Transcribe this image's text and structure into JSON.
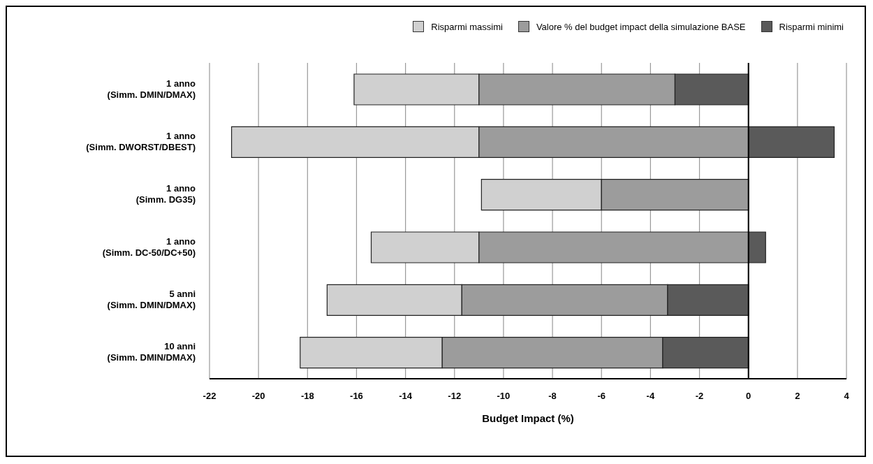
{
  "chart_data": {
    "type": "bar",
    "orientation": "horizontal",
    "xlabel": "Budget Impact (%)",
    "categories": [
      "1 anno\n(Simm. DMIN/DMAX)",
      "1 anno\n(Simm. DWORST/DBEST)",
      "1 anno\n(Simm. DG35)",
      "1 anno\n(Simm. DC-50/DC+50)",
      "5 anni\n(Simm. DMIN/DMAX)",
      "10 anni\n(Simm. DMIN/DMAX)"
    ],
    "series": [
      {
        "name": "Risparmi massimi",
        "color": "#d0d0d0",
        "base": [
          -16.1,
          -21.1,
          -10.9,
          -15.4,
          -17.2,
          -18.3
        ],
        "values": [
          5.1,
          10.1,
          4.9,
          4.4,
          5.5,
          5.8
        ]
      },
      {
        "name": "Valore % del budget impact della simulazione BASE",
        "color": "#9c9c9c",
        "base": [
          -11,
          -11,
          -6,
          -11,
          -11.7,
          -12.5
        ],
        "values": [
          8,
          11,
          6,
          11,
          8.4,
          9
        ]
      },
      {
        "name": "Risparmi minimi",
        "color": "#5a5a5a",
        "base": [
          -3,
          0,
          null,
          0,
          -3.3,
          -3.5
        ],
        "values": [
          3,
          3.5,
          null,
          0.7,
          3.3,
          3.5
        ]
      }
    ],
    "xlim": [
      -22,
      4
    ],
    "xticks": [
      -22,
      -20,
      -18,
      -16,
      -14,
      -12,
      -10,
      -8,
      -6,
      -4,
      -2,
      0,
      2,
      4
    ],
    "ref_lines": [
      {
        "axis": "x",
        "value": 0,
        "color": "#000000"
      }
    ],
    "grid": "x",
    "legend": "top right"
  }
}
